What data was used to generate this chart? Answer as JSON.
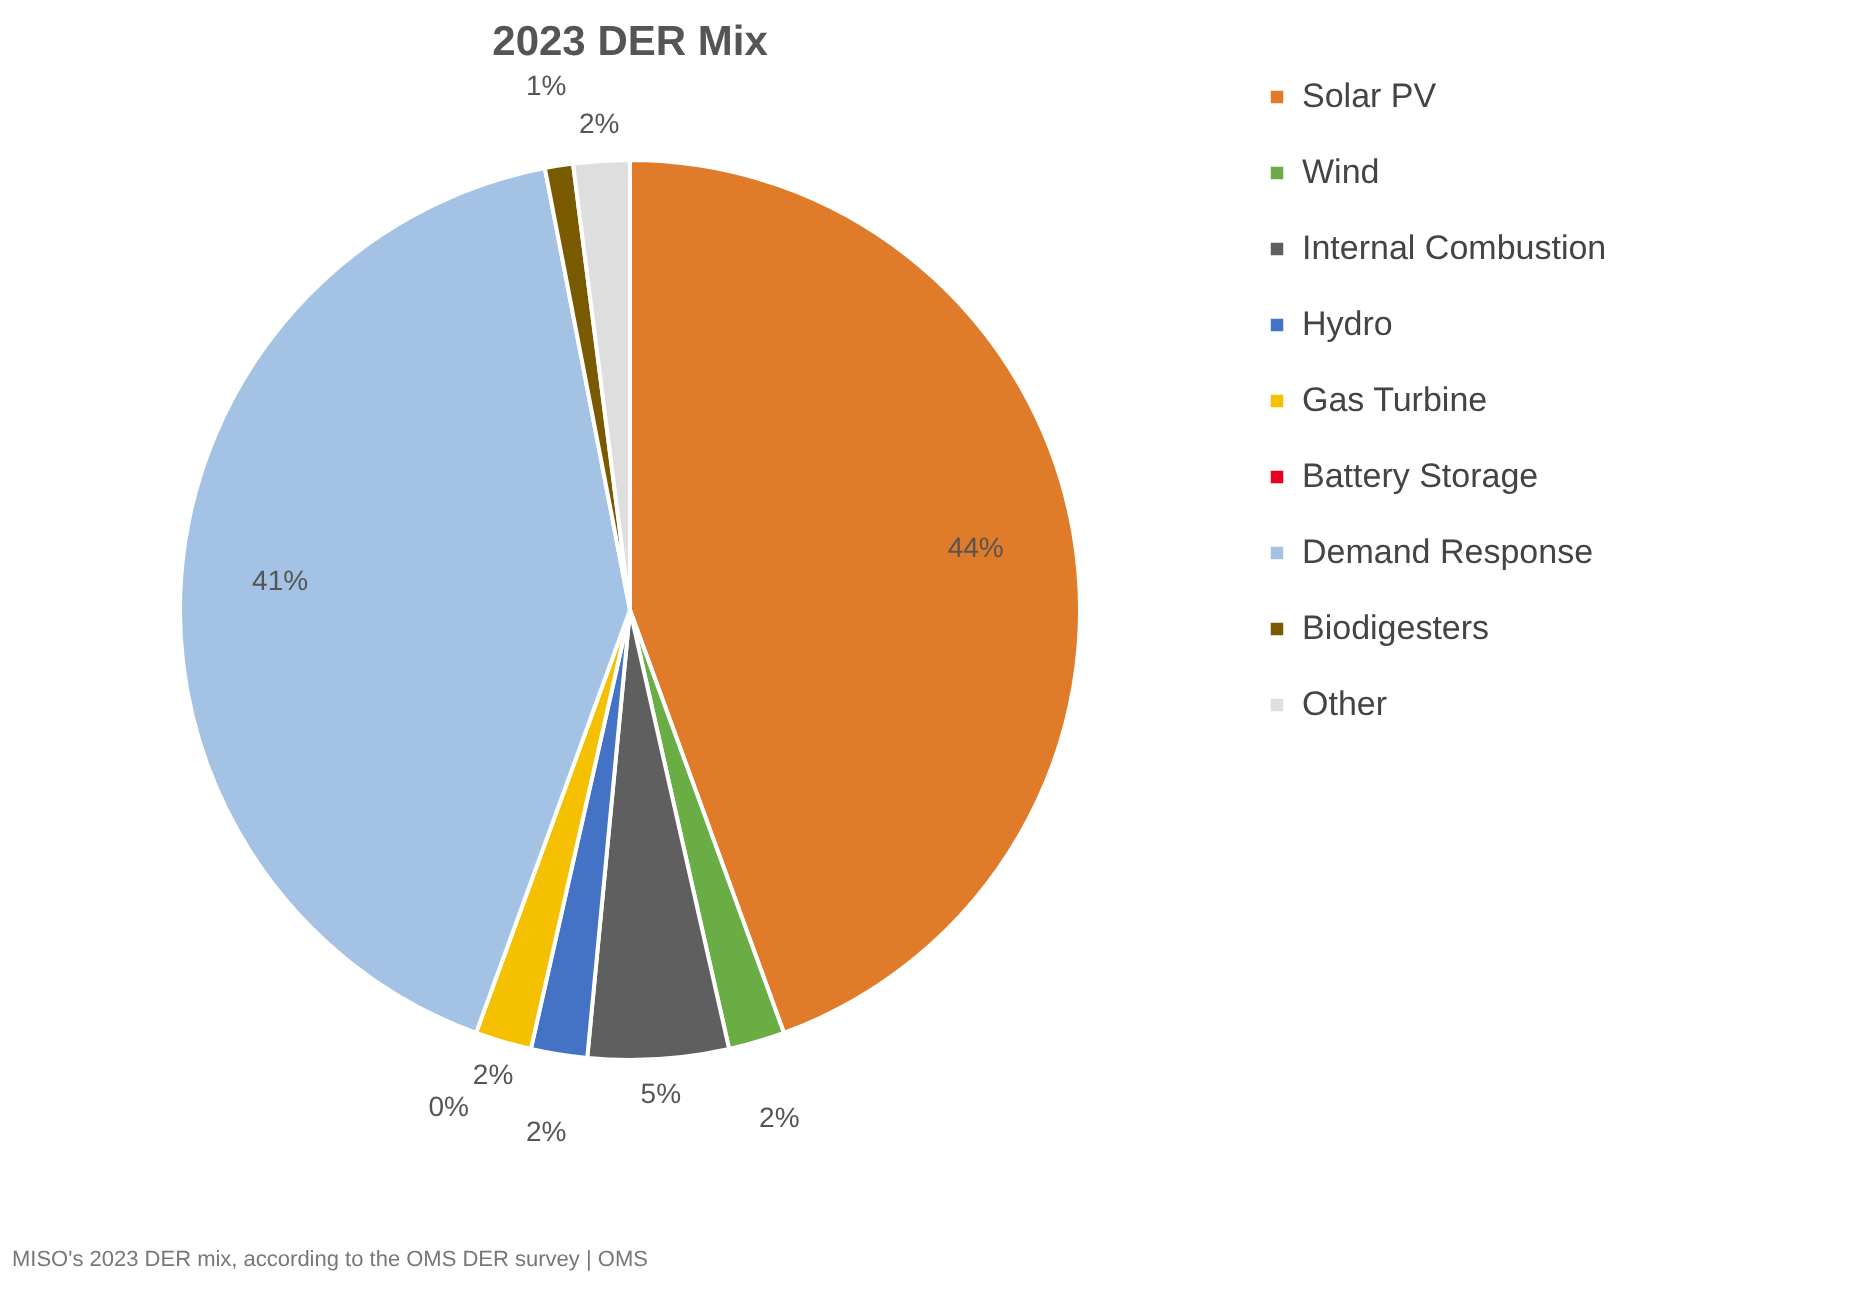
{
  "chart_data": {
    "type": "pie",
    "title": "2023 DER Mix",
    "categories": [
      "Solar PV",
      "Wind",
      "Internal Combustion",
      "Hydro",
      "Gas Turbine",
      "Battery Storage",
      "Demand Response",
      "Biodigesters",
      "Other"
    ],
    "values": [
      44,
      2,
      5,
      2,
      2,
      0,
      41,
      1,
      2
    ],
    "value_labels": [
      "44%",
      "2%",
      "5%",
      "2%",
      "2%",
      "0%",
      "41%",
      "1%",
      "2%"
    ],
    "colors": [
      "#e07b2a",
      "#6aad45",
      "#5f5f5f",
      "#4472c4",
      "#f5c000",
      "#e8001c",
      "#a4c2e4",
      "#7a5a00",
      "#dedede"
    ],
    "legend": "right",
    "annotations": [
      "MISO's 2023 DER mix, according to the OMS DER survey | OMS"
    ]
  }
}
